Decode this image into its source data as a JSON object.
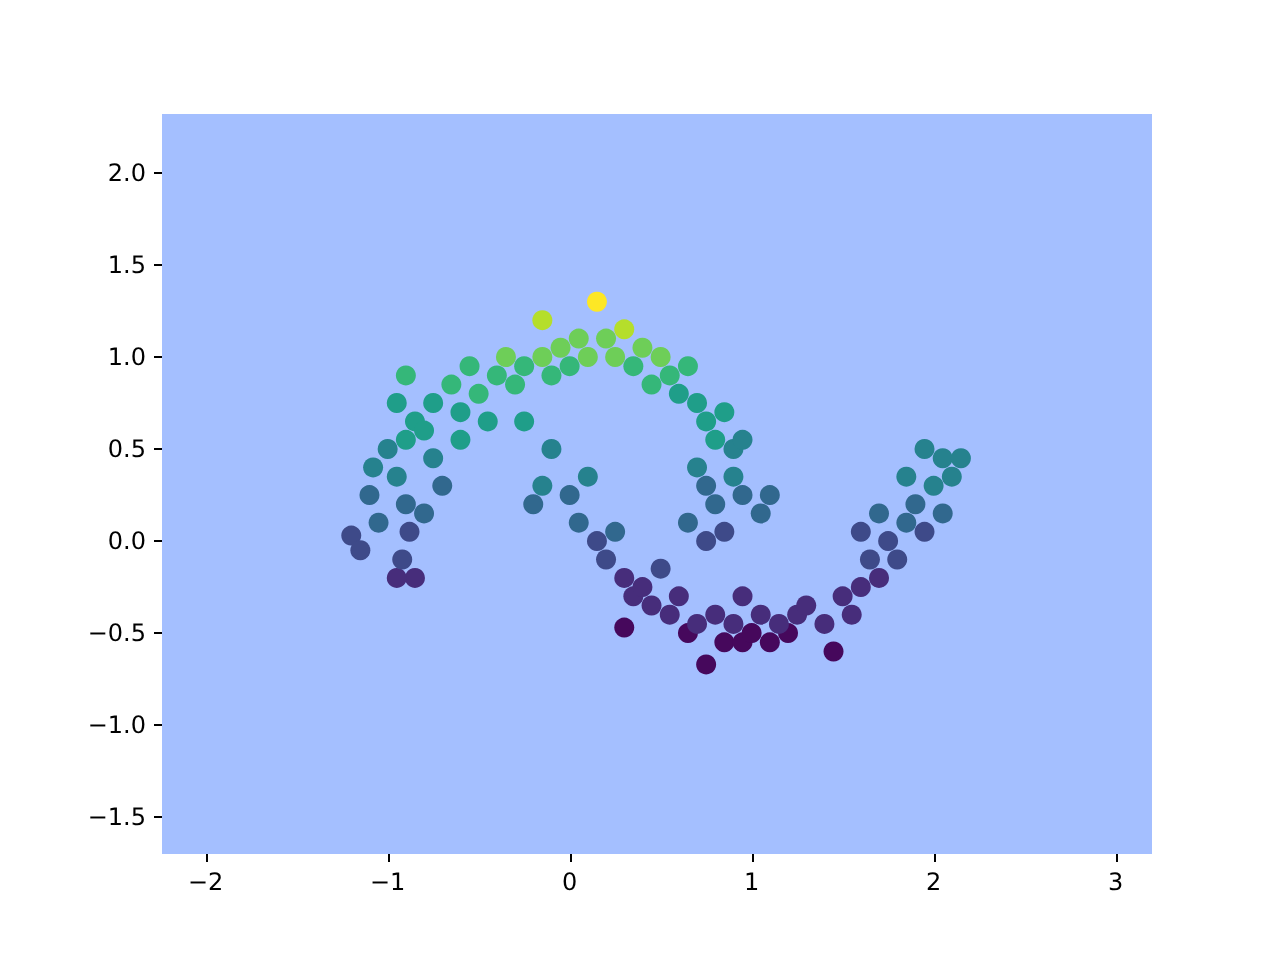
{
  "chart_data": {
    "type": "scatter",
    "marker": "circle",
    "xlim": [
      -2.24,
      3.2
    ],
    "ylim": [
      -1.7,
      2.32
    ],
    "xticks": [
      {
        "value": -2,
        "label": "−2"
      },
      {
        "value": -1,
        "label": "−1"
      },
      0,
      1,
      2,
      3
    ],
    "yticks": [
      {
        "value": -1.5,
        "label": "−1.5"
      },
      {
        "value": -1,
        "label": "−1.0"
      },
      {
        "value": -0.5,
        "label": "−0.5"
      },
      {
        "value": 0,
        "label": "0.0"
      },
      0.5,
      {
        "value": 1,
        "label": "1.0"
      },
      1.5,
      {
        "value": 2,
        "label": "2.0"
      }
    ],
    "series": [
      {
        "color": "#46085c",
        "x": [
          0.65,
          0.75,
          0.85,
          0.95,
          1.0,
          1.1,
          1.2,
          1.45,
          0.3
        ],
        "values": [
          -0.5,
          -0.67,
          -0.55,
          -0.55,
          -0.5,
          -0.55,
          -0.5,
          -0.6,
          -0.47
        ]
      },
      {
        "color": "#472d7b",
        "x": [
          0.3,
          0.35,
          0.4,
          0.45,
          0.55,
          0.6,
          0.7,
          0.8,
          0.9,
          1.05,
          1.15,
          1.25,
          1.3,
          1.4,
          1.5,
          1.55,
          1.6,
          1.7,
          0.95,
          -0.85,
          -0.95
        ],
        "values": [
          -0.2,
          -0.3,
          -0.25,
          -0.35,
          -0.4,
          -0.3,
          -0.45,
          -0.4,
          -0.45,
          -0.4,
          -0.45,
          -0.4,
          -0.35,
          -0.45,
          -0.3,
          -0.4,
          -0.25,
          -0.2,
          -0.3,
          -0.2,
          -0.2
        ]
      },
      {
        "color": "#3e4a89",
        "x": [
          -1.2,
          -1.15,
          -0.92,
          -0.88,
          0.2,
          0.15,
          0.5,
          1.65,
          1.75,
          1.8,
          1.95,
          0.75,
          0.85,
          1.6
        ],
        "values": [
          0.03,
          -0.05,
          -0.1,
          0.05,
          -0.1,
          0.0,
          -0.15,
          -0.1,
          0.0,
          -0.1,
          0.05,
          0.0,
          0.05,
          0.05
        ]
      },
      {
        "color": "#31688e",
        "x": [
          -1.05,
          -1.1,
          -0.9,
          -0.8,
          -0.7,
          -0.2,
          0.0,
          0.05,
          0.25,
          0.8,
          0.95,
          1.05,
          1.1,
          0.65,
          1.85,
          1.9,
          2.05,
          1.7,
          0.75
        ],
        "values": [
          0.1,
          0.25,
          0.2,
          0.15,
          0.3,
          0.2,
          0.25,
          0.1,
          0.05,
          0.2,
          0.25,
          0.15,
          0.25,
          0.1,
          0.1,
          0.2,
          0.15,
          0.15,
          0.3
        ]
      },
      {
        "color": "#26828e",
        "x": [
          -1.08,
          -1.0,
          -0.95,
          -0.75,
          -0.15,
          -0.1,
          0.1,
          0.7,
          0.9,
          2.0,
          2.05,
          1.95,
          2.1,
          2.15,
          1.85,
          0.9,
          0.95
        ],
        "values": [
          0.4,
          0.5,
          0.35,
          0.45,
          0.3,
          0.5,
          0.35,
          0.4,
          0.35,
          0.3,
          0.45,
          0.5,
          0.35,
          0.45,
          0.35,
          0.5,
          0.55
        ]
      },
      {
        "color": "#1f9e89",
        "x": [
          -0.9,
          -0.85,
          -0.95,
          -0.8,
          -0.75,
          -0.6,
          -0.45,
          -0.6,
          0.7,
          0.75,
          0.8,
          0.85,
          0.6,
          -0.25
        ],
        "values": [
          0.55,
          0.65,
          0.75,
          0.6,
          0.75,
          0.7,
          0.65,
          0.55,
          0.75,
          0.65,
          0.55,
          0.7,
          0.8,
          0.65
        ]
      },
      {
        "color": "#35b779",
        "x": [
          -0.9,
          -0.65,
          -0.55,
          -0.5,
          -0.4,
          -0.3,
          -0.25,
          -0.1,
          0.0,
          0.35,
          0.45,
          0.55,
          0.65
        ],
        "values": [
          0.9,
          0.85,
          0.95,
          0.8,
          0.9,
          0.85,
          0.95,
          0.9,
          0.95,
          0.95,
          0.85,
          0.9,
          0.95
        ]
      },
      {
        "color": "#6ece58",
        "x": [
          -0.35,
          -0.15,
          -0.05,
          0.05,
          0.1,
          0.2,
          0.25,
          0.4,
          0.5
        ],
        "values": [
          1.0,
          1.0,
          1.05,
          1.1,
          1.0,
          1.1,
          1.0,
          1.05,
          1.0
        ]
      },
      {
        "color": "#b5de2b",
        "x": [
          -0.15,
          0.3
        ],
        "values": [
          1.2,
          1.15
        ]
      },
      {
        "color": "#fde725",
        "x": [
          0.15
        ],
        "values": [
          1.3
        ]
      }
    ]
  }
}
